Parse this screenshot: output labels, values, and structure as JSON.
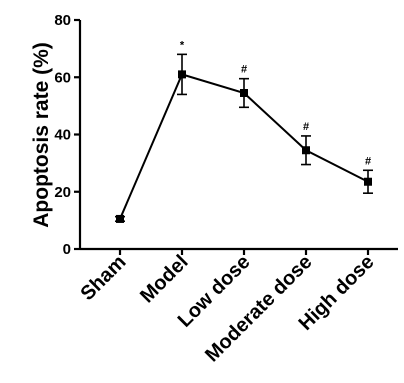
{
  "chart_data": {
    "type": "line",
    "title": "",
    "xlabel": "",
    "ylabel": "Apoptosis rate (%)",
    "ylim": [
      0,
      80
    ],
    "yticks": [
      0,
      20,
      40,
      60,
      80
    ],
    "grid": false,
    "categories": [
      "Sham",
      "Model",
      "Low dose",
      "Moderate dose",
      "High dose"
    ],
    "values": [
      10.5,
      61,
      54.5,
      34.5,
      23.5
    ],
    "errors": [
      0.8,
      7,
      5,
      5,
      4
    ],
    "annotations": [
      "",
      "*",
      "#",
      "#",
      "#"
    ],
    "marker": "square",
    "line_color": "#000000"
  }
}
